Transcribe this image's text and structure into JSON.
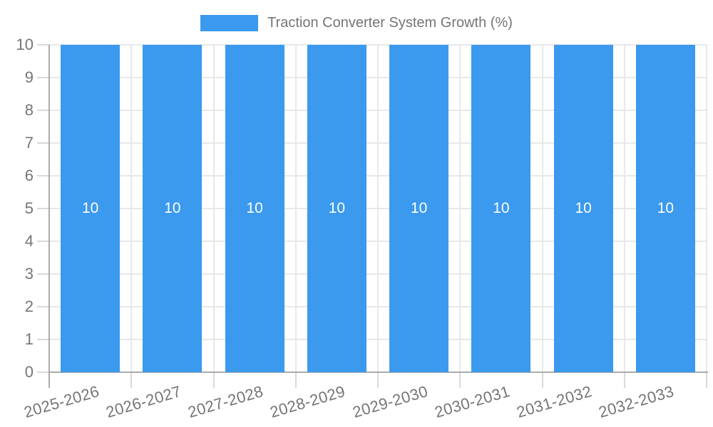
{
  "legend": {
    "label": "Traction Converter System Growth (%)"
  },
  "colors": {
    "bar": "#3B99EE",
    "legend_text": "#757575",
    "axis_text": "#757575",
    "grid": "#E8E8E8",
    "tick": "#D9D9D9",
    "axis_line": "#ABABAB",
    "bar_value_label": "#FFFFFF",
    "background": "#FFFFFF"
  },
  "chart_data": {
    "type": "bar",
    "title": "",
    "legend_position": "top",
    "categories": [
      "2025-2026",
      "2026-2027",
      "2027-2028",
      "2028-2029",
      "2029-2030",
      "2030-2031",
      "2031-2032",
      "2032-2033"
    ],
    "series": [
      {
        "name": "Traction Converter System Growth (%)",
        "values": [
          10,
          10,
          10,
          10,
          10,
          10,
          10,
          10
        ]
      }
    ],
    "value_labels": [
      "10",
      "10",
      "10",
      "10",
      "10",
      "10",
      "10",
      "10"
    ],
    "show_value_labels": true,
    "ylim": [
      0,
      10
    ],
    "yticks": [
      0,
      1,
      2,
      3,
      4,
      5,
      6,
      7,
      8,
      9,
      10
    ],
    "grid": true
  }
}
